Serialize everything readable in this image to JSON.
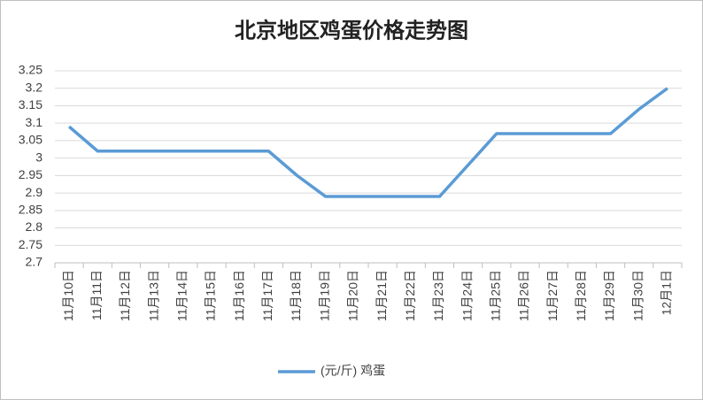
{
  "chart_data": {
    "type": "line",
    "title": "北京地区鸡蛋价格走势图",
    "categories": [
      "11月10日",
      "11月11日",
      "11月12日",
      "11月13日",
      "11月14日",
      "11月15日",
      "11月16日",
      "11月17日",
      "11月18日",
      "11月19日",
      "11月20日",
      "11月21日",
      "11月22日",
      "11月23日",
      "11月24日",
      "11月25日",
      "11月26日",
      "11月27日",
      "11月28日",
      "11月29日",
      "11月30日",
      "12月1日"
    ],
    "series": [
      {
        "name": "(元/斤) 鸡蛋",
        "color": "#5b9bd5",
        "values": [
          3.09,
          3.02,
          3.02,
          3.02,
          3.02,
          3.02,
          3.02,
          3.02,
          2.95,
          2.89,
          2.89,
          2.89,
          2.89,
          2.89,
          2.98,
          3.07,
          3.07,
          3.07,
          3.07,
          3.07,
          3.14,
          3.2
        ]
      }
    ],
    "ylim": [
      2.7,
      3.25
    ],
    "yticks": [
      2.7,
      2.75,
      2.8,
      2.85,
      2.9,
      2.95,
      3,
      3.05,
      3.1,
      3.15,
      3.2,
      3.25
    ],
    "grid": true,
    "legend": "bottom"
  }
}
